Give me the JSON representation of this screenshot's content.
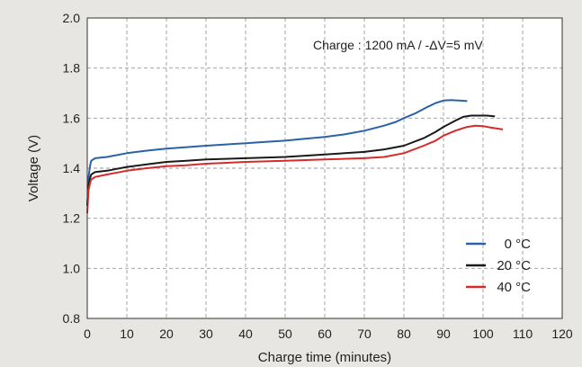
{
  "chart_data": {
    "type": "line",
    "xlabel": "Charge time (minutes)",
    "ylabel": "Voltage (V)",
    "xlim": [
      0,
      120
    ],
    "ylim": [
      0.8,
      2.0
    ],
    "xticks": [
      0,
      10,
      20,
      30,
      40,
      50,
      60,
      70,
      80,
      90,
      100,
      110,
      120
    ],
    "yticks": [
      "0.8",
      "1.0",
      "1.2",
      "1.4",
      "1.6",
      "1.8",
      "2.0"
    ],
    "grid": true,
    "legend_position": "bottom-right",
    "annotation": "Charge : 1200 mA / -ΔV=5 mV",
    "series": [
      {
        "name": "0 °C",
        "color": "#2a62a8",
        "x": [
          0,
          0.3,
          0.7,
          1,
          2,
          5,
          10,
          15,
          20,
          25,
          30,
          35,
          40,
          45,
          50,
          55,
          60,
          65,
          70,
          75,
          78,
          80,
          83,
          86,
          88,
          90,
          92,
          94,
          96
        ],
        "y": [
          1.25,
          1.36,
          1.41,
          1.43,
          1.44,
          1.445,
          1.46,
          1.47,
          1.478,
          1.484,
          1.49,
          1.495,
          1.5,
          1.505,
          1.51,
          1.518,
          1.525,
          1.535,
          1.55,
          1.57,
          1.585,
          1.6,
          1.62,
          1.645,
          1.66,
          1.67,
          1.672,
          1.67,
          1.668
        ]
      },
      {
        "name": "20 °C",
        "color": "#1a1a1a",
        "x": [
          0,
          0.3,
          0.7,
          1,
          2,
          5,
          10,
          15,
          20,
          25,
          30,
          40,
          50,
          60,
          70,
          75,
          80,
          85,
          88,
          90,
          93,
          95,
          97,
          99,
          101,
          103
        ],
        "y": [
          1.25,
          1.33,
          1.36,
          1.375,
          1.385,
          1.39,
          1.405,
          1.415,
          1.425,
          1.43,
          1.435,
          1.44,
          1.445,
          1.455,
          1.465,
          1.475,
          1.49,
          1.52,
          1.545,
          1.565,
          1.59,
          1.605,
          1.61,
          1.61,
          1.61,
          1.607
        ]
      },
      {
        "name": "40 °C",
        "color": "#d42b2b",
        "x": [
          0,
          0.3,
          0.7,
          1,
          2,
          5,
          10,
          15,
          20,
          25,
          30,
          40,
          50,
          60,
          70,
          75,
          80,
          85,
          88,
          90,
          93,
          96,
          98,
          100,
          102,
          105
        ],
        "y": [
          1.22,
          1.31,
          1.34,
          1.355,
          1.365,
          1.375,
          1.39,
          1.4,
          1.408,
          1.412,
          1.418,
          1.425,
          1.43,
          1.435,
          1.44,
          1.445,
          1.46,
          1.49,
          1.51,
          1.53,
          1.55,
          1.565,
          1.57,
          1.568,
          1.562,
          1.555
        ]
      }
    ]
  }
}
